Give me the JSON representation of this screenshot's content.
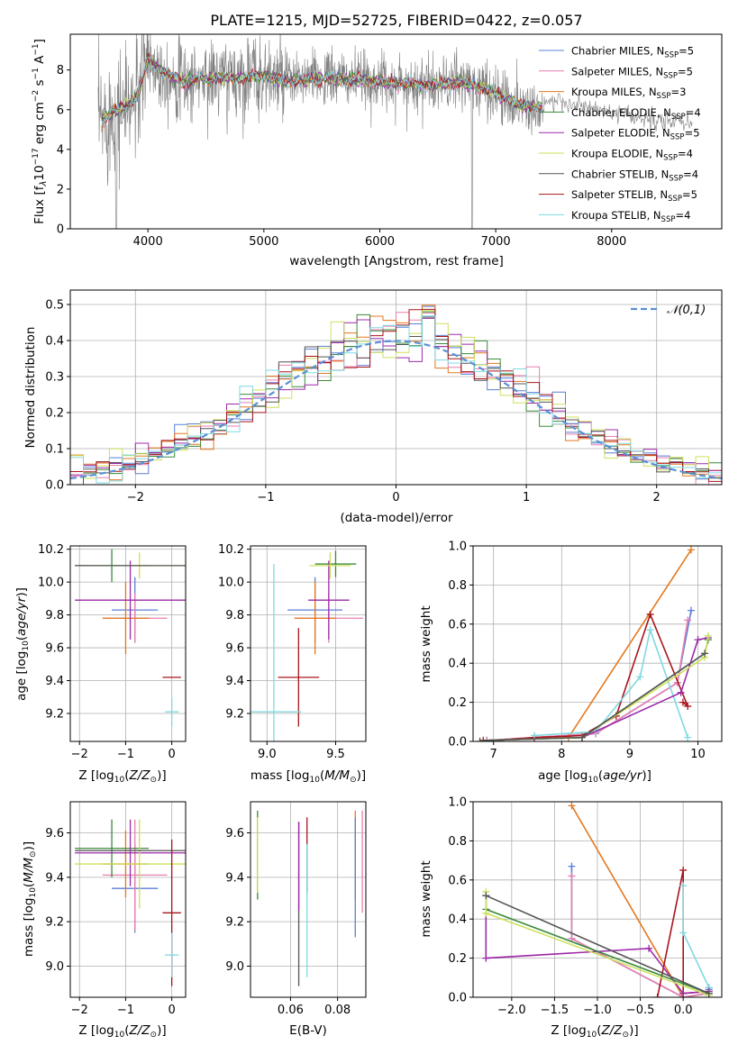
{
  "title": "PLATE=1215, MJD=52725, FIBERID=0422, z=0.057",
  "colors": {
    "Chabrier MILES": "#5b7fd6",
    "Salpeter MILES": "#e87fb0",
    "Kroupa MILES": "#e3781f",
    "Chabrier ELODIE": "#3a8a3a",
    "Salpeter ELODIE": "#9c2aa8",
    "Kroupa ELODIE": "#cde05a",
    "Chabrier STELIB": "#555555",
    "Salpeter STELIB": "#a8141c",
    "Kroupa STELIB": "#7fd8e0",
    "data": "#808080",
    "gauss": "#5b8fd6"
  },
  "legend": [
    {
      "name": "Chabrier MILES",
      "nssp": "5"
    },
    {
      "name": "Salpeter MILES",
      "nssp": "5"
    },
    {
      "name": "Kroupa MILES",
      "nssp": "3"
    },
    {
      "name": "Chabrier ELODIE",
      "nssp": "4"
    },
    {
      "name": "Salpeter ELODIE",
      "nssp": "5"
    },
    {
      "name": "Kroupa ELODIE",
      "nssp": "4"
    },
    {
      "name": "Chabrier STELIB",
      "nssp": "4"
    },
    {
      "name": "Salpeter STELIB",
      "nssp": "5"
    },
    {
      "name": "Kroupa STELIB",
      "nssp": "4"
    }
  ],
  "chart_data": [
    {
      "type": "line",
      "id": "spectrum",
      "xlabel": "wavelength [Angstrom, rest frame]",
      "ylabel": "Flux [f_λ 10^-17 erg cm^-2 s^-1 A^-1]",
      "xlim": [
        3330,
        8950
      ],
      "ylim": [
        0,
        9.8
      ],
      "xticks": [
        4000,
        5000,
        6000,
        7000,
        8000
      ],
      "yticks": [
        0,
        2,
        4,
        6,
        8
      ],
      "grid": false,
      "legend_position": "right",
      "continuum": {
        "x": [
          3600,
          3700,
          3800,
          3900,
          3950,
          4000,
          4100,
          4300,
          4500,
          4800,
          5000,
          5200,
          5500,
          5800,
          6000,
          6300,
          6500,
          6700,
          6900,
          7100,
          7300,
          7500,
          7800,
          8000,
          8200,
          8400,
          8700
        ],
        "y": [
          5.4,
          5.9,
          6.1,
          6.6,
          7.5,
          8.6,
          8.0,
          7.4,
          7.6,
          7.6,
          7.7,
          7.4,
          7.6,
          7.5,
          7.4,
          7.3,
          7.2,
          7.4,
          7.1,
          6.5,
          6.1,
          6.2,
          5.9,
          5.6,
          5.4,
          5.2,
          5.2
        ]
      }
    },
    {
      "type": "histogram",
      "id": "residuals",
      "xlabel": "(data-model)/error",
      "ylabel": "Normed distribution",
      "xlim": [
        -2.5,
        2.5
      ],
      "ylim": [
        0,
        0.54
      ],
      "xticks": [
        -2,
        -1,
        0,
        1,
        2
      ],
      "yticks": [
        0.0,
        0.1,
        0.2,
        0.3,
        0.4,
        0.5
      ],
      "grid": true,
      "reference": {
        "label": "𝒩(0,1)",
        "mean": 0,
        "sigma": 1,
        "legend_position": "top-right"
      },
      "bin_width": 0.1
    },
    {
      "type": "scatter",
      "id": "age-vs-Z",
      "xlabel": "Z [log10(Z/Z⊙)]",
      "ylabel": "age [log10(age/yr)]",
      "xlim": [
        -2.2,
        0.3
      ],
      "ylim": [
        9.03,
        10.22
      ],
      "xticks": [
        -2,
        -1,
        0
      ],
      "yticks": [
        9.2,
        9.4,
        9.6,
        9.8,
        10.0,
        10.2
      ],
      "grid": true,
      "points": [
        {
          "model": "Chabrier MILES",
          "x": -0.8,
          "xerr": 0.5,
          "y": 9.83,
          "yerr": 0.2
        },
        {
          "model": "Salpeter MILES",
          "x": -0.8,
          "xerr": 0.7,
          "y": 9.78,
          "yerr": 0.15
        },
        {
          "model": "Kroupa MILES",
          "x": -1.0,
          "xerr": 0.5,
          "y": 9.78,
          "yerr": 0.22
        },
        {
          "model": "Chabrier ELODIE",
          "x": -1.3,
          "xerr": 0.8,
          "y": 10.1,
          "yerr": 0.1
        },
        {
          "model": "Salpeter ELODIE",
          "x": -0.9,
          "xerr": 1.2,
          "y": 9.89,
          "yerr": 0.24
        },
        {
          "model": "Kroupa ELODIE",
          "x": -0.7,
          "xerr": 1.1,
          "y": 10.1,
          "yerr": 0.08
        },
        {
          "model": "Chabrier STELIB",
          "x": -0.9,
          "xerr": 1.2,
          "y": 10.1,
          "yerr": 0.0
        },
        {
          "model": "Salpeter STELIB",
          "x": 0.0,
          "xerr": 0.2,
          "y": 9.42,
          "yerr": 0.0
        },
        {
          "model": "Kroupa STELIB",
          "x": 0.0,
          "xerr": 0.15,
          "y": 9.21,
          "yerr": 0.09
        }
      ]
    },
    {
      "type": "scatter",
      "id": "age-vs-mass",
      "xlabel": "mass [log10(M/M⊙)]",
      "ylabel": "",
      "xlim": [
        8.88,
        9.72
      ],
      "ylim": [
        9.03,
        10.22
      ],
      "xticks": [
        9.0,
        9.5
      ],
      "yticks": [
        9.2,
        9.4,
        9.6,
        9.8,
        10.0,
        10.2
      ],
      "grid": true,
      "points": [
        {
          "model": "Chabrier MILES",
          "x": 9.35,
          "xerr": 0.2,
          "y": 9.83,
          "yerr": 0.2
        },
        {
          "model": "Salpeter MILES",
          "x": 9.45,
          "xerr": 0.25,
          "y": 9.78,
          "yerr": 0.15
        },
        {
          "model": "Kroupa MILES",
          "x": 9.35,
          "xerr": 0.15,
          "y": 9.78,
          "yerr": 0.22
        },
        {
          "model": "Chabrier ELODIE",
          "x": 9.5,
          "xerr": 0.15,
          "y": 10.11,
          "yerr": 0.08
        },
        {
          "model": "Salpeter ELODIE",
          "x": 9.45,
          "xerr": 0.15,
          "y": 9.89,
          "yerr": 0.24
        },
        {
          "model": "Kroupa ELODIE",
          "x": 9.46,
          "xerr": 0.15,
          "y": 10.1,
          "yerr": 0.08
        },
        {
          "model": "Chabrier STELIB",
          "x": 9.02,
          "xerr": 0.0,
          "y": 10.1,
          "yerr": 0.0
        },
        {
          "model": "Salpeter STELIB",
          "x": 9.23,
          "xerr": 0.15,
          "y": 9.42,
          "yerr": 0.3
        },
        {
          "model": "Kroupa STELIB",
          "x": 9.05,
          "xerr": 0.2,
          "y": 9.21,
          "yerr": 0.9
        }
      ]
    },
    {
      "type": "line",
      "id": "mass-weight-vs-age",
      "xlabel": "age [log10(age/yr)]",
      "ylabel": "mass weight",
      "xlim": [
        6.7,
        10.35
      ],
      "ylim": [
        0,
        1.0
      ],
      "xticks": [
        7,
        8,
        9,
        10
      ],
      "yticks": [
        0.0,
        0.2,
        0.4,
        0.6,
        0.8,
        1.0
      ],
      "grid": true,
      "series": [
        {
          "model": "Kroupa MILES",
          "x": [
            6.9,
            8.1,
            9.9
          ],
          "y": [
            0.005,
            0.02,
            0.98
          ]
        },
        {
          "model": "Chabrier MILES",
          "x": [
            6.9,
            8.5,
            9.7,
            9.9
          ],
          "y": [
            0.005,
            0.04,
            0.3,
            0.67
          ]
        },
        {
          "model": "Salpeter MILES",
          "x": [
            6.9,
            8.5,
            9.7,
            9.85
          ],
          "y": [
            0.005,
            0.04,
            0.3,
            0.62
          ]
        },
        {
          "model": "Salpeter STELIB",
          "x": [
            6.8,
            7.6,
            8.3,
            8.8,
            9.3,
            9.85,
            9.78
          ],
          "y": [
            0.0,
            0.02,
            0.03,
            0.13,
            0.65,
            0.18,
            0.2
          ]
        },
        {
          "model": "Kroupa STELIB",
          "x": [
            7.6,
            8.5,
            9.15,
            9.3,
            9.85
          ],
          "y": [
            0.03,
            0.05,
            0.33,
            0.57,
            0.02
          ]
        },
        {
          "model": "Salpeter ELODIE",
          "x": [
            6.85,
            8.3,
            9.75,
            10.0,
            10.15
          ],
          "y": [
            0.005,
            0.02,
            0.25,
            0.52,
            0.53
          ]
        },
        {
          "model": "Chabrier ELODIE",
          "x": [
            6.85,
            8.3,
            10.1,
            10.15
          ],
          "y": [
            0.005,
            0.02,
            0.45,
            0.52
          ]
        },
        {
          "model": "Kroupa ELODIE",
          "x": [
            6.85,
            8.3,
            10.1,
            10.15
          ],
          "y": [
            0.005,
            0.02,
            0.43,
            0.54
          ]
        },
        {
          "model": "Chabrier STELIB",
          "x": [
            6.85,
            8.3,
            10.1
          ],
          "y": [
            0.005,
            0.02,
            0.45
          ]
        }
      ]
    },
    {
      "type": "scatter",
      "id": "mass-vs-Z",
      "xlabel": "Z [log10(Z/Z⊙)]",
      "ylabel": "mass [log10(M/M⊙)]",
      "xlim": [
        -2.2,
        0.3
      ],
      "ylim": [
        8.86,
        9.74
      ],
      "xticks": [
        -2,
        -1,
        0
      ],
      "yticks": [
        9.0,
        9.2,
        9.4,
        9.6
      ],
      "grid": true,
      "points": [
        {
          "model": "Chabrier MILES",
          "x": -0.8,
          "xerr": 0.5,
          "y": 9.35,
          "yerr": 0.2
        },
        {
          "model": "Salpeter MILES",
          "x": -0.8,
          "xerr": 0.7,
          "y": 9.41,
          "yerr": 0.25
        },
        {
          "model": "Kroupa MILES",
          "x": -1.0,
          "xerr": 0.5,
          "y": 9.46,
          "yerr": 0.15
        },
        {
          "model": "Chabrier ELODIE",
          "x": -1.3,
          "xerr": 0.8,
          "y": 9.53,
          "yerr": 0.13
        },
        {
          "model": "Salpeter ELODIE",
          "x": -0.9,
          "xerr": 1.2,
          "y": 9.51,
          "yerr": 0.15
        },
        {
          "model": "Kroupa ELODIE",
          "x": -0.7,
          "xerr": 1.4,
          "y": 9.46,
          "yerr": 0.2
        },
        {
          "model": "Chabrier STELIB",
          "x": -0.9,
          "xerr": 1.2,
          "y": 9.52,
          "yerr": 0.0
        },
        {
          "model": "Salpeter STELIB",
          "x": 0.0,
          "xerr": 0.2,
          "y": 9.24,
          "yerr": 0.33
        },
        {
          "model": "Kroupa STELIB",
          "x": 0.0,
          "xerr": 0.15,
          "y": 9.05,
          "yerr": 0.1
        }
      ]
    },
    {
      "type": "scatter",
      "id": "mass-vs-EBV",
      "xlabel": "E(B-V)",
      "ylabel": "",
      "xlim": [
        0.043,
        0.092
      ],
      "ylim": [
        8.86,
        9.74
      ],
      "xticks": [
        0.06,
        0.08
      ],
      "yticks": [
        9.0,
        9.2,
        9.4,
        9.6
      ],
      "grid": true,
      "points": [
        {
          "model": "Chabrier ELODIE",
          "x": 0.046,
          "y": 9.5,
          "yerr": 0.2
        },
        {
          "model": "Kroupa ELODIE",
          "x": 0.046,
          "y": 9.5,
          "yerr": 0.17
        },
        {
          "model": "Chabrier STELIB",
          "x": 0.0635,
          "y": 9.28,
          "yerr": 0.37
        },
        {
          "model": "Salpeter ELODIE",
          "x": 0.0635,
          "y": 9.45,
          "yerr": 0.2
        },
        {
          "model": "Salpeter STELIB",
          "x": 0.067,
          "y": 9.5,
          "yerr": 0.17
        },
        {
          "model": "Kroupa STELIB",
          "x": 0.067,
          "y": 9.25,
          "yerr": 0.3
        },
        {
          "model": "Kroupa MILES",
          "x": 0.0875,
          "y": 9.5,
          "yerr": 0.2
        },
        {
          "model": "Chabrier MILES",
          "x": 0.0875,
          "y": 9.4,
          "yerr": 0.27
        },
        {
          "model": "Salpeter MILES",
          "x": 0.0905,
          "y": 9.47,
          "yerr": 0.23
        }
      ]
    },
    {
      "type": "line",
      "id": "mass-weight-vs-Z",
      "xlabel": "Z [log10(Z/Z⊙)]",
      "ylabel": "mass weight",
      "xlim": [
        -2.45,
        0.45
      ],
      "ylim": [
        0,
        1.0
      ],
      "xticks": [
        -2.0,
        -1.5,
        -1.0,
        -0.5,
        0.0
      ],
      "yticks": [
        0.0,
        0.2,
        0.4,
        0.6,
        0.8,
        1.0
      ],
      "grid": true,
      "series": [
        {
          "model": "Kroupa MILES",
          "x": [
            -1.3,
            0.0,
            0.3
          ],
          "y": [
            0.98,
            0.0,
            0.02
          ]
        },
        {
          "model": "Chabrier MILES",
          "x": [
            -1.3,
            -1.3,
            0.0,
            0.3,
            0.3
          ],
          "y": [
            0.67,
            0.3,
            0.0,
            0.02,
            0.04
          ]
        },
        {
          "model": "Salpeter MILES",
          "x": [
            -1.3,
            -1.3,
            0.0,
            0.3,
            0.3
          ],
          "y": [
            0.62,
            0.3,
            0.0,
            0.02,
            0.05
          ]
        },
        {
          "model": "Salpeter STELIB",
          "x": [
            -0.3,
            0.0,
            0.0,
            0.3
          ],
          "y": [
            0.0,
            0.65,
            0.02,
            0.03
          ]
        },
        {
          "model": "Kroupa STELIB",
          "x": [
            0.0,
            0.0,
            0.3,
            0.3
          ],
          "y": [
            0.57,
            0.33,
            0.05,
            0.02
          ]
        },
        {
          "model": "Salpeter ELODIE",
          "x": [
            -2.3,
            -2.3,
            -0.4,
            0.0,
            0.3
          ],
          "y": [
            0.52,
            0.2,
            0.25,
            0.02,
            0.03
          ]
        },
        {
          "model": "Chabrier ELODIE",
          "x": [
            -2.3,
            -2.3,
            0.3
          ],
          "y": [
            0.52,
            0.45,
            0.02
          ]
        },
        {
          "model": "Kroupa ELODIE",
          "x": [
            -2.3,
            -2.3,
            0.3
          ],
          "y": [
            0.54,
            0.43,
            0.01
          ]
        },
        {
          "model": "Chabrier STELIB",
          "x": [
            -2.3,
            0.3
          ],
          "y": [
            0.52,
            0.02
          ]
        }
      ]
    }
  ]
}
